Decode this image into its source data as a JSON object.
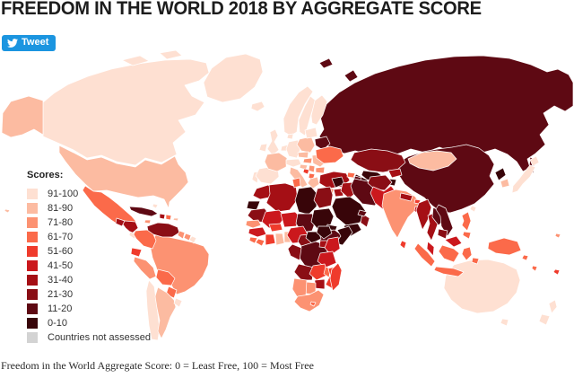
{
  "page": {
    "title": "FREEDOM IN THE WORLD 2018 BY AGGREGATE SCORE",
    "footer": "Freedom in the World Aggregate Score: 0 = Least Free, 100 = Most Free"
  },
  "tweet_button": {
    "label": "Tweet",
    "color": "#1b95e0",
    "icon": "twitter-bird"
  },
  "legend": {
    "title": "Scores:",
    "not_assessed_color": "#d3d3d3",
    "items": [
      {
        "label": "91-100",
        "bucket": "91-100",
        "color": "#fee0d2"
      },
      {
        "label": "81-90",
        "bucket": "81-90",
        "color": "#fcbba1"
      },
      {
        "label": "71-80",
        "bucket": "71-80",
        "color": "#fc9272"
      },
      {
        "label": "61-70",
        "bucket": "61-70",
        "color": "#fb6a4a"
      },
      {
        "label": "51-60",
        "bucket": "51-60",
        "color": "#ef3b2c"
      },
      {
        "label": "41-50",
        "bucket": "41-50",
        "color": "#cb181d"
      },
      {
        "label": "31-40",
        "bucket": "31-40",
        "color": "#a50f15"
      },
      {
        "label": "21-30",
        "bucket": "21-30",
        "color": "#8a0e15"
      },
      {
        "label": "11-20",
        "bucket": "11-20",
        "color": "#5e0913"
      },
      {
        "label": "0-10",
        "bucket": "0-10",
        "color": "#380509"
      },
      {
        "label": "Countries not assessed",
        "bucket": "not-assessed",
        "color": "#d3d3d3"
      }
    ]
  },
  "chart_data": {
    "type": "choropleth-map",
    "title": "Freedom in the World 2018 by Aggregate Score",
    "scale_note": "0 = Least Free, 100 = Most Free",
    "buckets": [
      "91-100",
      "81-90",
      "71-80",
      "61-70",
      "51-60",
      "41-50",
      "31-40",
      "21-30",
      "11-20",
      "0-10",
      "not-assessed"
    ],
    "regions": {
      "greenland": "91-100",
      "canada": "91-100",
      "alaska": "81-90",
      "usa": "81-90",
      "hawaii": "81-90",
      "mexico": "61-70",
      "guatemala": "31-40",
      "honduras-nicaragua": "31-40",
      "costa-rica": "91-100",
      "panama": "81-90",
      "cuba": "11-20",
      "jamaica": "71-80",
      "haiti": "31-40",
      "dominican-republic": "61-70",
      "bahamas": "91-100",
      "puerto-rico": "81-90",
      "venezuela": "21-30",
      "guyana": "71-80",
      "suriname": "71-80",
      "french-guiana": "91-100",
      "colombia": "61-70",
      "ecuador": "51-60",
      "peru": "71-80",
      "brazil": "71-80",
      "bolivia": "61-70",
      "paraguay": "61-70",
      "chile": "91-100",
      "argentina": "81-90",
      "uruguay": "91-100",
      "iceland": "91-100",
      "ireland": "91-100",
      "uk": "91-100",
      "norway": "91-100",
      "sweden": "91-100",
      "finland": "91-100",
      "denmark": "91-100",
      "portugal": "91-100",
      "spain": "91-100",
      "france": "81-90",
      "benelux": "91-100",
      "germany": "91-100",
      "alpine": "91-100",
      "italy": "81-90",
      "poland": "81-90",
      "czech-slovakia": "81-90",
      "hungary": "71-80",
      "croatia": "81-90",
      "bosnia": "51-60",
      "serbia": "71-80",
      "albania-macedonia": "61-70",
      "romania": "81-90",
      "bulgaria": "71-80",
      "greece": "81-90",
      "baltics": "91-100",
      "belarus": "11-20",
      "ukraine": "61-70",
      "turkey": "31-40",
      "russia": "11-20",
      "kazakhstan": "21-30",
      "uzbekistan": "0-10",
      "turkmenistan": "0-10",
      "kyrgyzstan": "31-40",
      "tajikistan": "0-10",
      "georgia": "61-70",
      "azerbaijan": "11-20",
      "syria": "0-10",
      "israel": "71-80",
      "jordan": "31-40",
      "iraq": "31-40",
      "iran": "11-20",
      "saudi-arabia": "0-10",
      "yemen": "0-10",
      "oman": "21-30",
      "uae": "11-20",
      "afghanistan": "21-30",
      "pakistan": "41-50",
      "china": "11-20",
      "mongolia": "81-90",
      "north-korea": "0-10",
      "south-korea": "81-90",
      "japan": "91-100",
      "taiwan": "91-100",
      "india": "71-80",
      "nepal": "31-40",
      "bhutan": "51-60",
      "bangladesh": "41-50",
      "sri-lanka": "51-60",
      "myanmar": "31-40",
      "thailand": "31-40",
      "laos": "11-20",
      "vietnam": "11-20",
      "cambodia": "21-30",
      "malaysia": "41-50",
      "malaysia-borneo": "41-50",
      "indonesia-sumatra": "61-70",
      "indonesia-borneo": "61-70",
      "indonesia-java": "61-70",
      "indonesia-sulawesi": "61-70",
      "indonesia-east": "61-70",
      "philippines": "61-70",
      "morocco": "31-40",
      "western-sahara": "0-10",
      "algeria": "31-40",
      "tunisia": "61-70",
      "libya": "0-10",
      "egypt": "21-30",
      "mauritania": "21-30",
      "mali": "41-50",
      "niger": "41-50",
      "chad": "11-20",
      "sudan": "0-10",
      "eritrea": "0-10",
      "ethiopia": "11-20",
      "somalia": "0-10",
      "senegal": "71-80",
      "guinea": "41-50",
      "sierra-leone": "61-70",
      "liberia": "61-70",
      "ivory-coast": "51-60",
      "burkina-faso": "51-60",
      "ghana": "81-90",
      "togo-benin": "81-90",
      "nigeria": "41-50",
      "cameroon": "21-30",
      "car": "0-10",
      "south-sudan": "0-10",
      "drc": "11-20",
      "gabon-congo": "21-30",
      "uganda": "31-40",
      "kenya": "41-50",
      "tanzania": "41-50",
      "angola": "21-30",
      "zambia": "51-60",
      "malawi": "61-70",
      "mozambique": "51-60",
      "zimbabwe": "31-40",
      "botswana": "71-80",
      "namibia": "71-80",
      "south-africa": "71-80",
      "lesotho": "61-70",
      "madagascar": "51-60",
      "new-guinea": "61-70",
      "solomon-islands": "61-70",
      "vanuatu": "61-70",
      "fiji": "51-60",
      "samoa": "71-80",
      "australia": "91-100",
      "new-zealand": "91-100"
    }
  }
}
